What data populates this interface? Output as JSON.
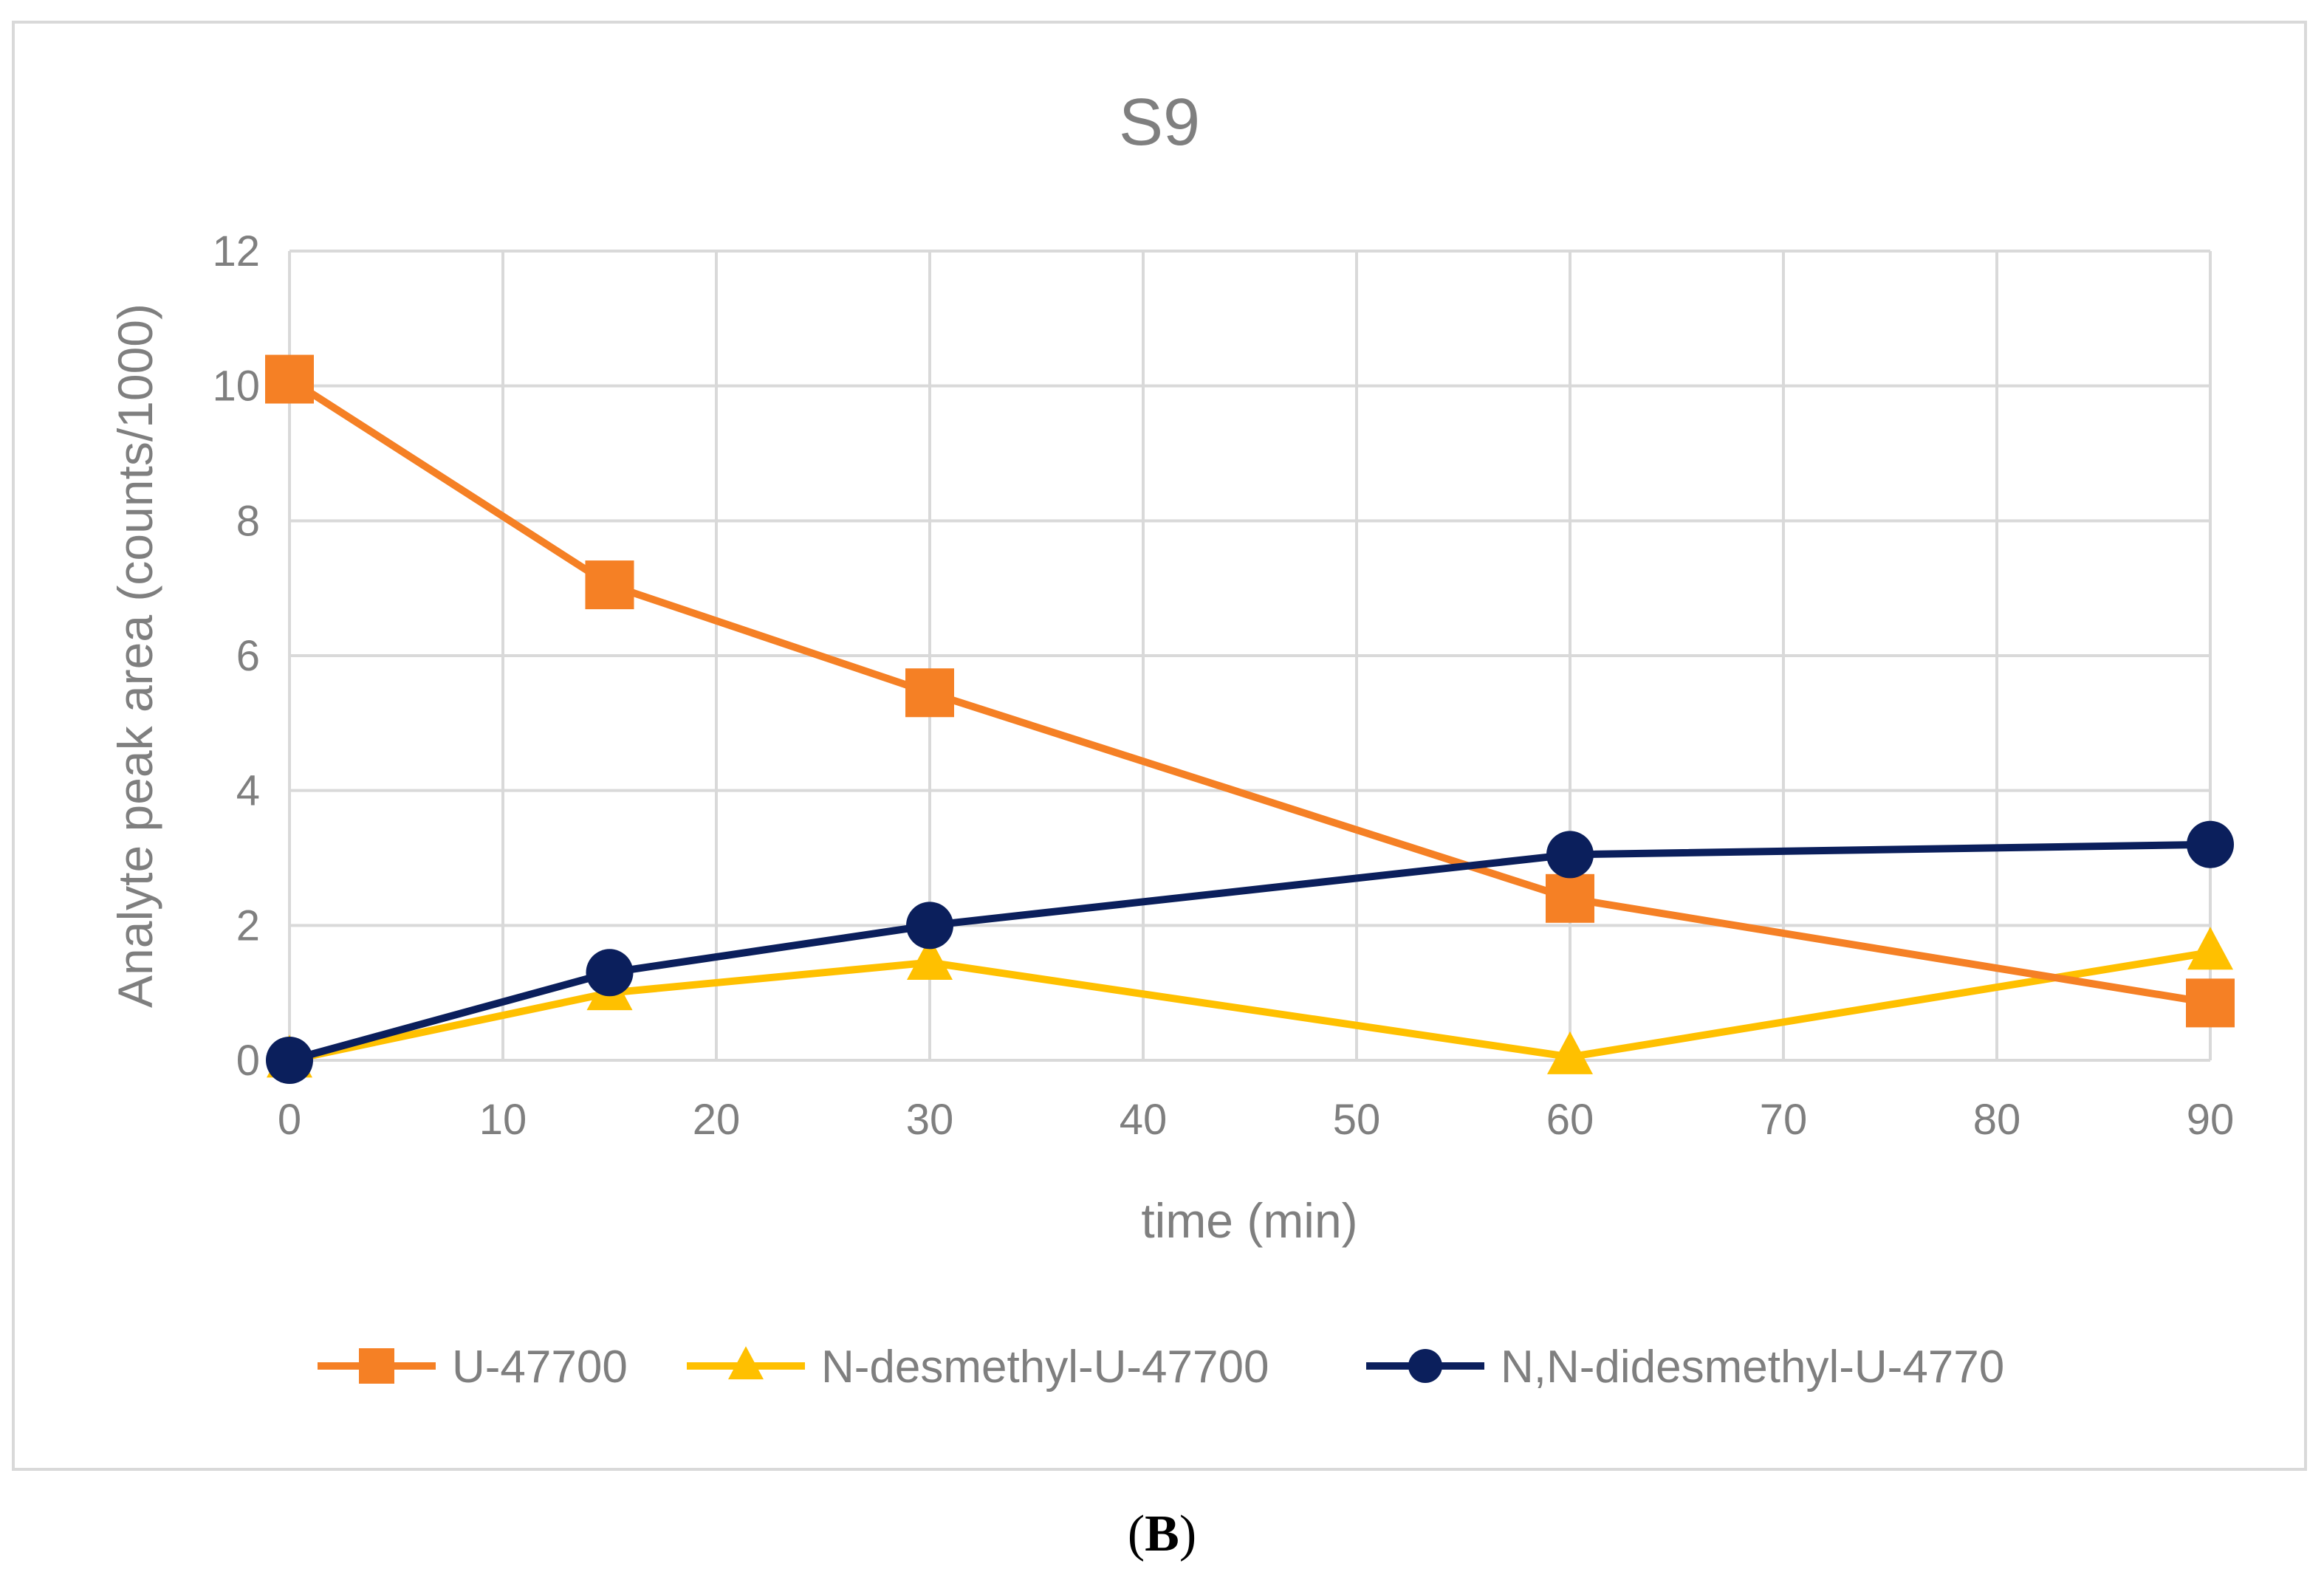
{
  "chart_data": {
    "type": "line",
    "title": "S9",
    "xlabel": "time (min)",
    "ylabel": "Analyte peak area (counts/1000)",
    "xlim": [
      0,
      90
    ],
    "ylim": [
      0,
      12
    ],
    "xticks": [
      0,
      10,
      20,
      30,
      40,
      50,
      60,
      70,
      80,
      90
    ],
    "yticks": [
      0,
      2,
      4,
      6,
      8,
      10,
      12
    ],
    "grid": true,
    "legend_position": "bottom",
    "x": [
      0,
      15,
      30,
      60,
      90
    ],
    "series": [
      {
        "name": "U-47700",
        "marker": "square",
        "color": "#F58025",
        "values": [
          10.1,
          7.05,
          5.45,
          2.4,
          0.85
        ]
      },
      {
        "name": "N-desmethyl-U-47700",
        "marker": "triangle",
        "color": "#FFC000",
        "values": [
          0.0,
          1.0,
          1.45,
          0.05,
          1.6
        ]
      },
      {
        "name": "N,N-didesmethyl-U-4770",
        "marker": "circle",
        "color": "#0B1F5C",
        "values": [
          0.0,
          1.3,
          2.0,
          3.05,
          3.2
        ]
      }
    ]
  },
  "panel_label": "B"
}
